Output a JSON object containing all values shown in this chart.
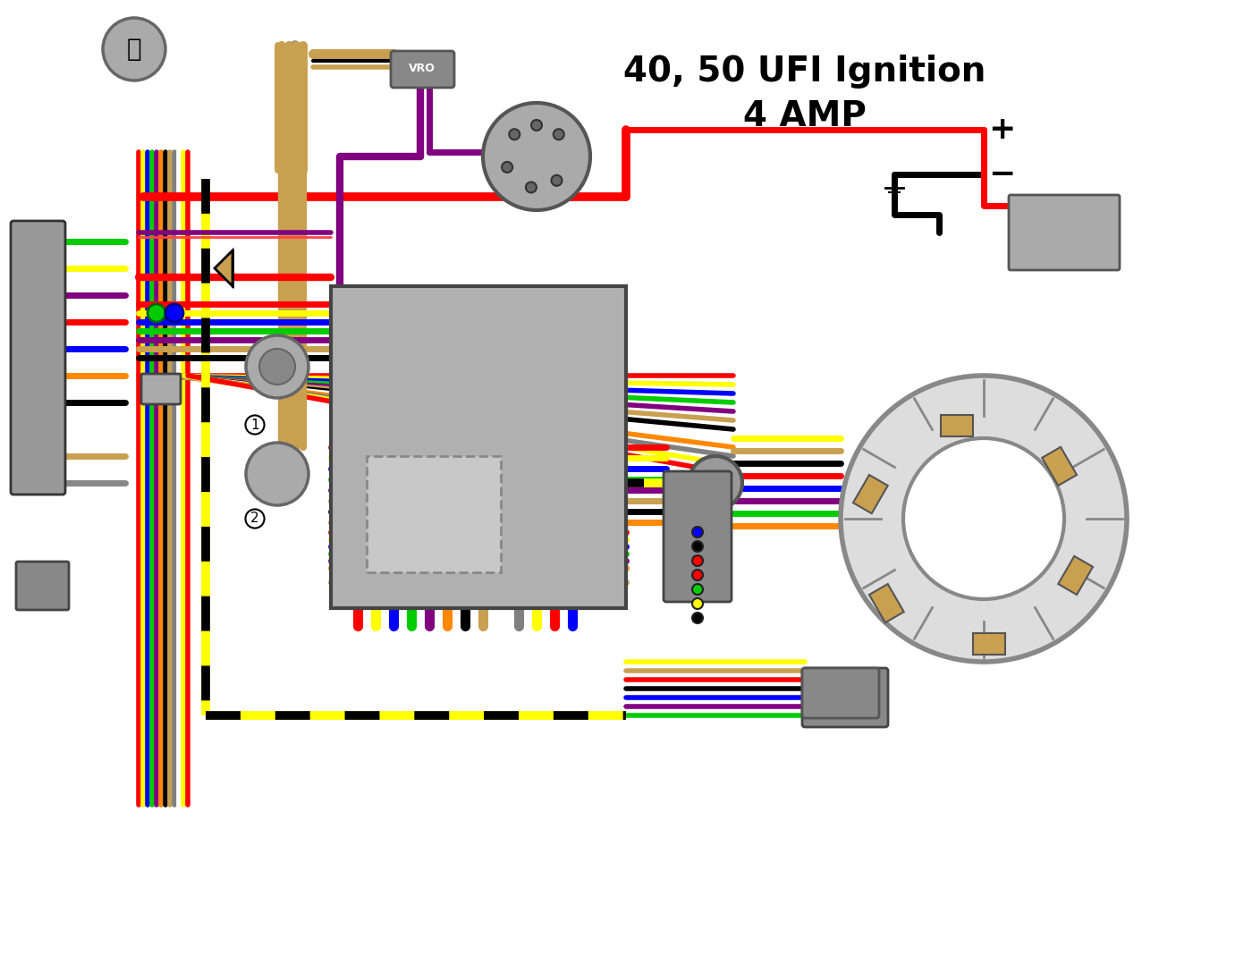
{
  "title_line1": "40, 50 UFI Ignition",
  "title_line2": "4 AMP",
  "bg_color": "#ffffff",
  "title_color": "#000000",
  "title_fontsize": 28,
  "title_fontweight": "bold",
  "fig_width": 14.0,
  "fig_height": 10.69,
  "dpi": 100,
  "wire_colors": [
    "#ff0000",
    "#ffff00",
    "#0000ff",
    "#00cc00",
    "#800080",
    "#ff8800",
    "#000000",
    "#ffffff",
    "#c8a050",
    "#808080"
  ],
  "plus_label": "+",
  "minus_label": "-",
  "vro_label": "VRO"
}
